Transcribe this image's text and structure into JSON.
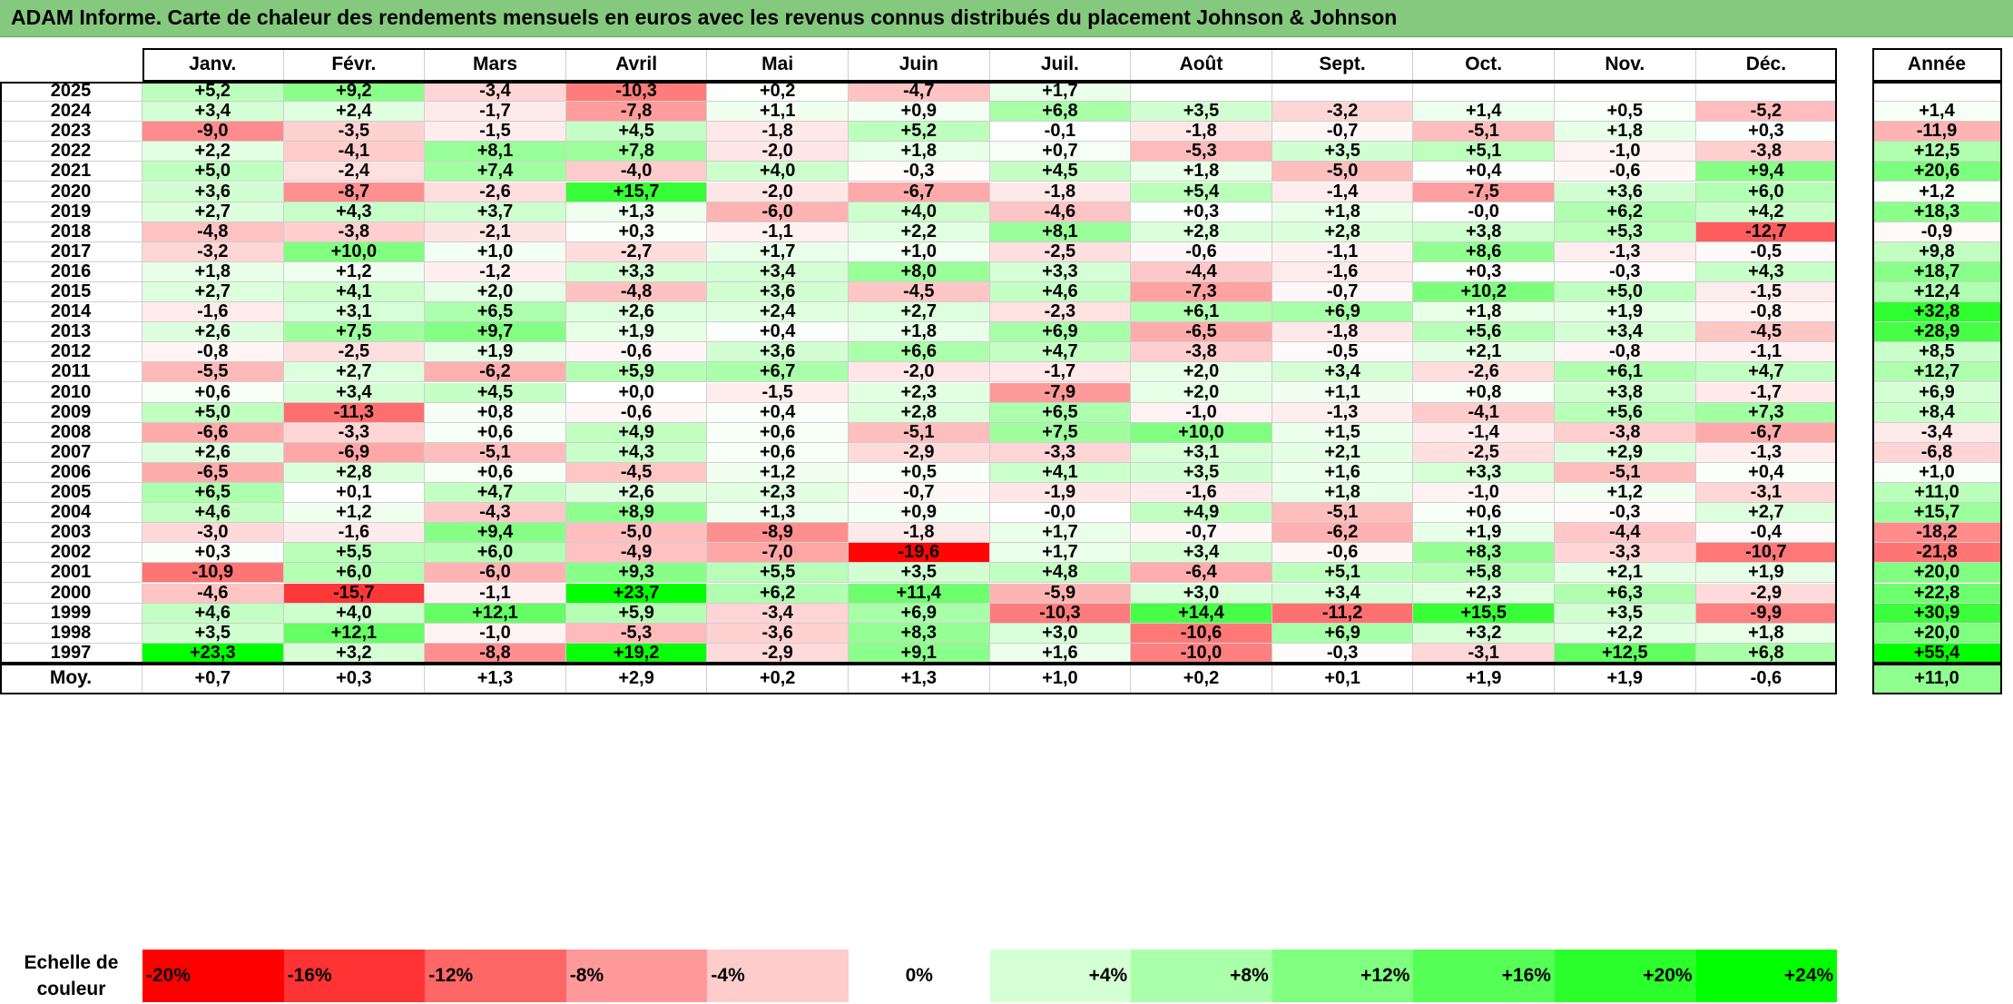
{
  "title": "ADAM Informe. Carte de chaleur des rendements mensuels en euros avec les revenus connus distribués du placement Johnson & Johnson",
  "chart_data": {
    "type": "heatmap",
    "months": [
      "Janv.",
      "Févr.",
      "Mars",
      "Avril",
      "Mai",
      "Juin",
      "Juil.",
      "Août",
      "Sept.",
      "Oct.",
      "Nov.",
      "Déc."
    ],
    "year_header": "Année",
    "average_label": "Moy.",
    "rows": [
      {
        "year": "2025",
        "values": [
          "+5,2",
          "+9,2",
          "-3,4",
          "-10,3",
          "+0,2",
          "-4,7",
          "+1,7",
          "",
          "",
          "",
          "",
          ""
        ],
        "annual": ""
      },
      {
        "year": "2024",
        "values": [
          "+3,4",
          "+2,4",
          "-1,7",
          "-7,8",
          "+1,1",
          "+0,9",
          "+6,8",
          "+3,5",
          "-3,2",
          "+1,4",
          "+0,5",
          "-5,2"
        ],
        "annual": "+1,4"
      },
      {
        "year": "2023",
        "values": [
          "-9,0",
          "-3,5",
          "-1,5",
          "+4,5",
          "-1,8",
          "+5,2",
          "-0,1",
          "-1,8",
          "-0,7",
          "-5,1",
          "+1,8",
          "+0,3"
        ],
        "annual": "-11,9"
      },
      {
        "year": "2022",
        "values": [
          "+2,2",
          "-4,1",
          "+8,1",
          "+7,8",
          "-2,0",
          "+1,8",
          "+0,7",
          "-5,3",
          "+3,5",
          "+5,1",
          "-1,0",
          "-3,8"
        ],
        "annual": "+12,5"
      },
      {
        "year": "2021",
        "values": [
          "+5,0",
          "-2,4",
          "+7,4",
          "-4,0",
          "+4,0",
          "-0,3",
          "+4,5",
          "+1,8",
          "-5,0",
          "+0,4",
          "-0,6",
          "+9,4"
        ],
        "annual": "+20,6"
      },
      {
        "year": "2020",
        "values": [
          "+3,6",
          "-8,7",
          "-2,6",
          "+15,7",
          "-2,0",
          "-6,7",
          "-1,8",
          "+5,4",
          "-1,4",
          "-7,5",
          "+3,6",
          "+6,0"
        ],
        "annual": "+1,2"
      },
      {
        "year": "2019",
        "values": [
          "+2,7",
          "+4,3",
          "+3,7",
          "+1,3",
          "-6,0",
          "+4,0",
          "-4,6",
          "+0,3",
          "+1,8",
          "-0,0",
          "+6,2",
          "+4,2"
        ],
        "annual": "+18,3"
      },
      {
        "year": "2018",
        "values": [
          "-4,8",
          "-3,8",
          "-2,1",
          "+0,3",
          "-1,1",
          "+2,2",
          "+8,1",
          "+2,8",
          "+2,8",
          "+3,8",
          "+5,3",
          "-12,7"
        ],
        "annual": "-0,9"
      },
      {
        "year": "2017",
        "values": [
          "-3,2",
          "+10,0",
          "+1,0",
          "-2,7",
          "+1,7",
          "+1,0",
          "-2,5",
          "-0,6",
          "-1,1",
          "+8,6",
          "-1,3",
          "-0,5"
        ],
        "annual": "+9,8"
      },
      {
        "year": "2016",
        "values": [
          "+1,8",
          "+1,2",
          "-1,2",
          "+3,3",
          "+3,4",
          "+8,0",
          "+3,3",
          "-4,4",
          "-1,6",
          "+0,3",
          "-0,3",
          "+4,3"
        ],
        "annual": "+18,7"
      },
      {
        "year": "2015",
        "values": [
          "+2,7",
          "+4,1",
          "+2,0",
          "-4,8",
          "+3,6",
          "-4,5",
          "+4,6",
          "-7,3",
          "-0,7",
          "+10,2",
          "+5,0",
          "-1,5"
        ],
        "annual": "+12,4"
      },
      {
        "year": "2014",
        "values": [
          "-1,6",
          "+3,1",
          "+6,5",
          "+2,6",
          "+2,4",
          "+2,7",
          "-2,3",
          "+6,1",
          "+6,9",
          "+1,8",
          "+1,9",
          "-0,8"
        ],
        "annual": "+32,8"
      },
      {
        "year": "2013",
        "values": [
          "+2,6",
          "+7,5",
          "+9,7",
          "+1,9",
          "+0,4",
          "+1,8",
          "+6,9",
          "-6,5",
          "-1,8",
          "+5,6",
          "+3,4",
          "-4,5"
        ],
        "annual": "+28,9"
      },
      {
        "year": "2012",
        "values": [
          "-0,8",
          "-2,5",
          "+1,9",
          "-0,6",
          "+3,6",
          "+6,6",
          "+4,7",
          "-3,8",
          "-0,5",
          "+2,1",
          "-0,8",
          "-1,1"
        ],
        "annual": "+8,5"
      },
      {
        "year": "2011",
        "values": [
          "-5,5",
          "+2,7",
          "-6,2",
          "+5,9",
          "+6,7",
          "-2,0",
          "-1,7",
          "+2,0",
          "+3,4",
          "-2,6",
          "+6,1",
          "+4,7"
        ],
        "annual": "+12,7"
      },
      {
        "year": "2010",
        "values": [
          "+0,6",
          "+3,4",
          "+4,5",
          "+0,0",
          "-1,5",
          "+2,3",
          "-7,9",
          "+2,0",
          "+1,1",
          "+0,8",
          "+3,8",
          "-1,7"
        ],
        "annual": "+6,9"
      },
      {
        "year": "2009",
        "values": [
          "+5,0",
          "-11,3",
          "+0,8",
          "-0,6",
          "+0,4",
          "+2,8",
          "+6,5",
          "-1,0",
          "-1,3",
          "-4,1",
          "+5,6",
          "+7,3"
        ],
        "annual": "+8,4"
      },
      {
        "year": "2008",
        "values": [
          "-6,6",
          "-3,3",
          "+0,6",
          "+4,9",
          "+0,6",
          "-5,1",
          "+7,5",
          "+10,0",
          "+1,5",
          "-1,4",
          "-3,8",
          "-6,7"
        ],
        "annual": "-3,4"
      },
      {
        "year": "2007",
        "values": [
          "+2,6",
          "-6,9",
          "-5,1",
          "+4,3",
          "+0,6",
          "-2,9",
          "-3,3",
          "+3,1",
          "+2,1",
          "-2,5",
          "+2,9",
          "-1,3"
        ],
        "annual": "-6,8"
      },
      {
        "year": "2006",
        "values": [
          "-6,5",
          "+2,8",
          "+0,6",
          "-4,5",
          "+1,2",
          "+0,5",
          "+4,1",
          "+3,5",
          "+1,6",
          "+3,3",
          "-5,1",
          "+0,4"
        ],
        "annual": "+1,0"
      },
      {
        "year": "2005",
        "values": [
          "+6,5",
          "+0,1",
          "+4,7",
          "+2,6",
          "+2,3",
          "-0,7",
          "-1,9",
          "-1,6",
          "+1,8",
          "-1,0",
          "+1,2",
          "-3,1"
        ],
        "annual": "+11,0"
      },
      {
        "year": "2004",
        "values": [
          "+4,6",
          "+1,2",
          "-4,3",
          "+8,9",
          "+1,3",
          "+0,9",
          "-0,0",
          "+4,9",
          "-5,1",
          "+0,6",
          "-0,3",
          "+2,7"
        ],
        "annual": "+15,7"
      },
      {
        "year": "2003",
        "values": [
          "-3,0",
          "-1,6",
          "+9,4",
          "-5,0",
          "-8,9",
          "-1,8",
          "+1,7",
          "-0,7",
          "-6,2",
          "+1,9",
          "-4,4",
          "-0,4"
        ],
        "annual": "-18,2"
      },
      {
        "year": "2002",
        "values": [
          "+0,3",
          "+5,5",
          "+6,0",
          "-4,9",
          "-7,0",
          "-19,6",
          "+1,7",
          "+3,4",
          "-0,6",
          "+8,3",
          "-3,3",
          "-10,7"
        ],
        "annual": "-21,8"
      },
      {
        "year": "2001",
        "values": [
          "-10,9",
          "+6,0",
          "-6,0",
          "+9,3",
          "+5,5",
          "+3,5",
          "+4,8",
          "-6,4",
          "+5,1",
          "+5,8",
          "+2,1",
          "+1,9"
        ],
        "annual": "+20,0"
      },
      {
        "year": "2000",
        "values": [
          "-4,6",
          "-15,7",
          "-1,1",
          "+23,7",
          "+6,2",
          "+11,4",
          "-5,9",
          "+3,0",
          "+3,4",
          "+2,3",
          "+6,3",
          "-2,9"
        ],
        "annual": "+22,8"
      },
      {
        "year": "1999",
        "values": [
          "+4,6",
          "+4,0",
          "+12,1",
          "+5,9",
          "-3,4",
          "+6,9",
          "-10,3",
          "+14,4",
          "-11,2",
          "+15,5",
          "+3,5",
          "-9,9"
        ],
        "annual": "+30,9"
      },
      {
        "year": "1998",
        "values": [
          "+3,5",
          "+12,1",
          "-1,0",
          "-5,3",
          "-3,6",
          "+8,3",
          "+3,0",
          "-10,6",
          "+6,9",
          "+3,2",
          "+2,2",
          "+1,8"
        ],
        "annual": "+20,0"
      },
      {
        "year": "1997",
        "values": [
          "+23,3",
          "+3,2",
          "-8,8",
          "+19,2",
          "-2,9",
          "+9,1",
          "+1,6",
          "-10,0",
          "-0,3",
          "-3,1",
          "+12,5",
          "+6,8"
        ],
        "annual": "+55,4"
      }
    ],
    "averages": [
      "+0,7",
      "+0,3",
      "+1,3",
      "+2,9",
      "+0,2",
      "+1,3",
      "+1,0",
      "+0,2",
      "+0,1",
      "+1,9",
      "+1,9",
      "-0,6"
    ],
    "average_annual": "+11,0",
    "scale": {
      "title_line1": "Echelle de",
      "title_line2": "couleur",
      "labels": [
        "-20%",
        "-16%",
        "-12%",
        "-8%",
        "-4%",
        "0%",
        "+4%",
        "+8%",
        "+12%",
        "+16%",
        "+20%",
        "+24%"
      ],
      "values": [
        -20,
        -16,
        -12,
        -8,
        -4,
        0,
        4,
        8,
        12,
        16,
        20,
        24
      ]
    },
    "colors": {
      "negative_max": "#ff0000",
      "neutral": "#ffffff",
      "positive_max": "#00ff00",
      "title_bar": "#84c97d"
    }
  }
}
